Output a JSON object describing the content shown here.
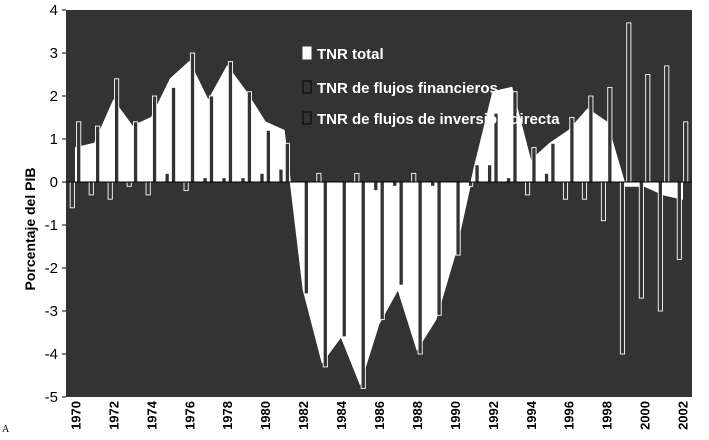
{
  "corner_text": "A",
  "chart_data": {
    "type": "bar",
    "ylabel": "Porcentaje del PIB",
    "ylim": [
      -5,
      4
    ],
    "yticks": [
      4,
      3,
      2,
      1,
      0,
      -1,
      -2,
      -3,
      -4,
      -5
    ],
    "x": [
      1970,
      1971,
      1972,
      1973,
      1974,
      1975,
      1976,
      1977,
      1978,
      1979,
      1980,
      1981,
      1982,
      1983,
      1984,
      1985,
      1986,
      1987,
      1988,
      1989,
      1990,
      1991,
      1992,
      1993,
      1994,
      1995,
      1996,
      1997,
      1998,
      1999,
      2000,
      2001,
      2002
    ],
    "xtick_labels": [
      "1970",
      "1972",
      "1974",
      "1976",
      "1978",
      "1980",
      "1982",
      "1984",
      "1986",
      "1988",
      "1990",
      "1992",
      "1994",
      "1996",
      "1998",
      "2000",
      "2002"
    ],
    "legend_position": "top-right",
    "colors": {
      "plot_bg": "#333333",
      "area": "#ffffff",
      "bars": "#333333",
      "bar_edge": "#ffffff"
    },
    "series": [
      {
        "name": "TNR total",
        "kind": "area",
        "values": [
          0.8,
          0.9,
          1.9,
          1.3,
          1.5,
          2.4,
          2.8,
          1.9,
          2.7,
          2.1,
          1.4,
          1.2,
          -2.5,
          -4.2,
          -3.6,
          -4.7,
          -3.3,
          -2.5,
          -3.9,
          -3.2,
          -1.7,
          0.3,
          2.1,
          2.2,
          0.5,
          0.9,
          1.2,
          1.7,
          1.4,
          -0.1,
          -0.1,
          -0.3,
          -0.4
        ]
      },
      {
        "name": "TNR de flujos financieros",
        "kind": "bar",
        "values": [
          1.4,
          1.3,
          2.4,
          1.4,
          2.0,
          2.2,
          3.0,
          2.0,
          2.8,
          2.1,
          1.2,
          0.9,
          -2.6,
          -4.3,
          -3.6,
          -4.8,
          -3.2,
          -2.4,
          -4.0,
          -3.1,
          -1.7,
          0.4,
          1.6,
          2.1,
          0.8,
          0.9,
          1.5,
          2.0,
          2.2,
          3.7,
          2.5,
          2.7,
          1.4
        ]
      },
      {
        "name": "TNR de flujos de inversión directa",
        "kind": "bar",
        "values": [
          -0.6,
          -0.3,
          -0.4,
          -0.1,
          -0.3,
          0.2,
          -0.2,
          0.1,
          0.1,
          0.1,
          0.2,
          0.3,
          0.0,
          0.2,
          0.0,
          0.2,
          -0.2,
          -0.1,
          0.2,
          -0.1,
          0.0,
          -0.1,
          0.4,
          0.1,
          -0.3,
          0.2,
          -0.4,
          -0.4,
          -0.9,
          -4.0,
          -2.7,
          -3.0,
          -1.8
        ]
      }
    ]
  }
}
